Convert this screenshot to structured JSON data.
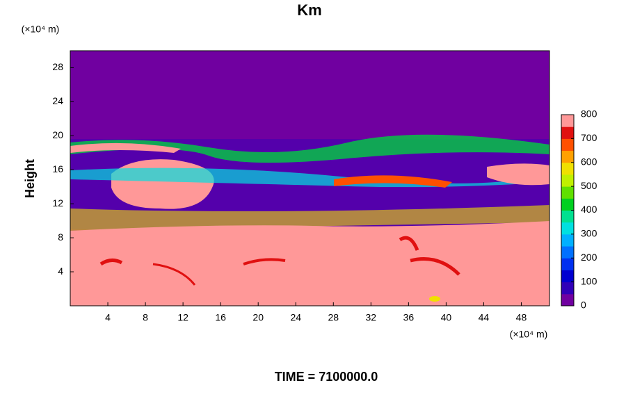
{
  "chart_data": {
    "type": "contour",
    "title": "Km",
    "x_unit": "(×10⁴ m)",
    "y_unit": "(×10⁴ m)",
    "ylabel": "Height",
    "footer": "TIME = 7100000.0",
    "xlim": [
      0,
      51
    ],
    "xticks": [
      4,
      8,
      12,
      16,
      20,
      24,
      28,
      32,
      36,
      40,
      44,
      48
    ],
    "ylim": [
      0,
      30
    ],
    "yticks": [
      4,
      8,
      12,
      16,
      20,
      24,
      28
    ],
    "colorbar": {
      "lim": [
        0,
        800
      ],
      "ticks": [
        0,
        100,
        200,
        300,
        400,
        500,
        600,
        700,
        800
      ],
      "colors": [
        "#7000a0",
        "#3000b8",
        "#0000d0",
        "#0030f0",
        "#0070ff",
        "#00b0ff",
        "#00e0e0",
        "#00e090",
        "#00d020",
        "#60e000",
        "#c0f000",
        "#f0e000",
        "#ffa000",
        "#ff5000",
        "#e01010",
        "#ff9898"
      ]
    }
  }
}
